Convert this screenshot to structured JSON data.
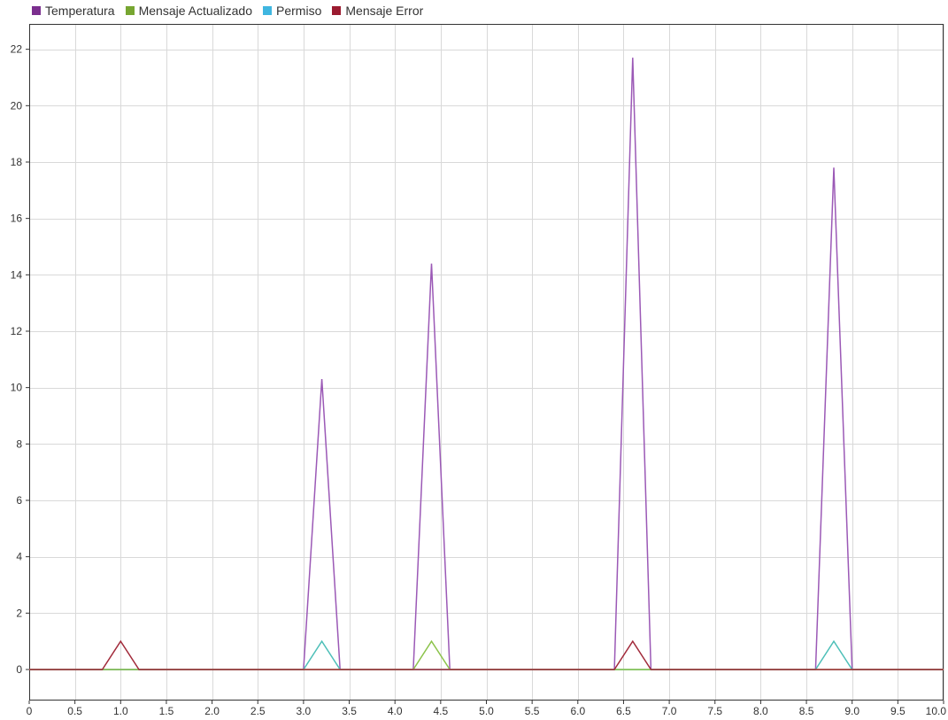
{
  "chart_data": {
    "type": "line",
    "title": "",
    "xlabel": "",
    "ylabel": "",
    "xlim": [
      0,
      10
    ],
    "ylim": [
      -1.1,
      22.9
    ],
    "grid": true,
    "legend_position": "top-left",
    "x_ticks": [
      0,
      0.5,
      1.0,
      1.5,
      2.0,
      2.5,
      3.0,
      3.5,
      4.0,
      4.5,
      5.0,
      5.5,
      6.0,
      6.5,
      7.0,
      7.5,
      8.0,
      8.5,
      9.0,
      9.5,
      10.0
    ],
    "x_tick_labels": [
      "0",
      "0.5",
      "1.0",
      "1.5",
      "2.0",
      "2.5",
      "3.0",
      "3.5",
      "4.0",
      "4.5",
      "5.0",
      "5.5",
      "6.0",
      "6.5",
      "7.0",
      "7.5",
      "8.0",
      "8.5",
      "9.0",
      "9.5",
      "10.0"
    ],
    "y_ticks": [
      0,
      2,
      4,
      6,
      8,
      10,
      12,
      14,
      16,
      18,
      20,
      22
    ],
    "y_tick_labels": [
      "0",
      "2",
      "4",
      "6",
      "8",
      "10",
      "12",
      "14",
      "16",
      "18",
      "20",
      "22"
    ],
    "series": [
      {
        "name": "Temperatura",
        "color": "#7b2f8e",
        "lineColor": "#9b59b6",
        "x": [
          0,
          3.0,
          3.2,
          3.4,
          4.2,
          4.4,
          4.6,
          6.4,
          6.6,
          6.8,
          8.6,
          8.8,
          9.0,
          10.0
        ],
        "y": [
          0,
          0,
          10.3,
          0,
          0,
          14.4,
          0,
          0,
          21.7,
          0,
          0,
          17.8,
          0,
          0
        ]
      },
      {
        "name": "Mensaje Actualizado",
        "color": "#77a631",
        "lineColor": "#8bc34a",
        "x": [
          0,
          4.2,
          4.4,
          4.6,
          10.0
        ],
        "y": [
          0,
          0,
          1,
          0,
          0
        ]
      },
      {
        "name": "Permiso",
        "color": "#3fb6e0",
        "lineColor": "#4dbfb8",
        "x": [
          0,
          3.0,
          3.2,
          3.4,
          8.6,
          8.8,
          9.0,
          10.0
        ],
        "y": [
          0,
          0,
          1,
          0,
          0,
          1,
          0,
          0
        ]
      },
      {
        "name": "Mensaje Error",
        "color": "#9b1b30",
        "lineColor": "#a12a3a",
        "x": [
          0,
          0.8,
          1.0,
          1.2,
          6.4,
          6.6,
          6.8,
          10.0
        ],
        "y": [
          0,
          0,
          1,
          0,
          0,
          1,
          0,
          0
        ]
      }
    ]
  }
}
